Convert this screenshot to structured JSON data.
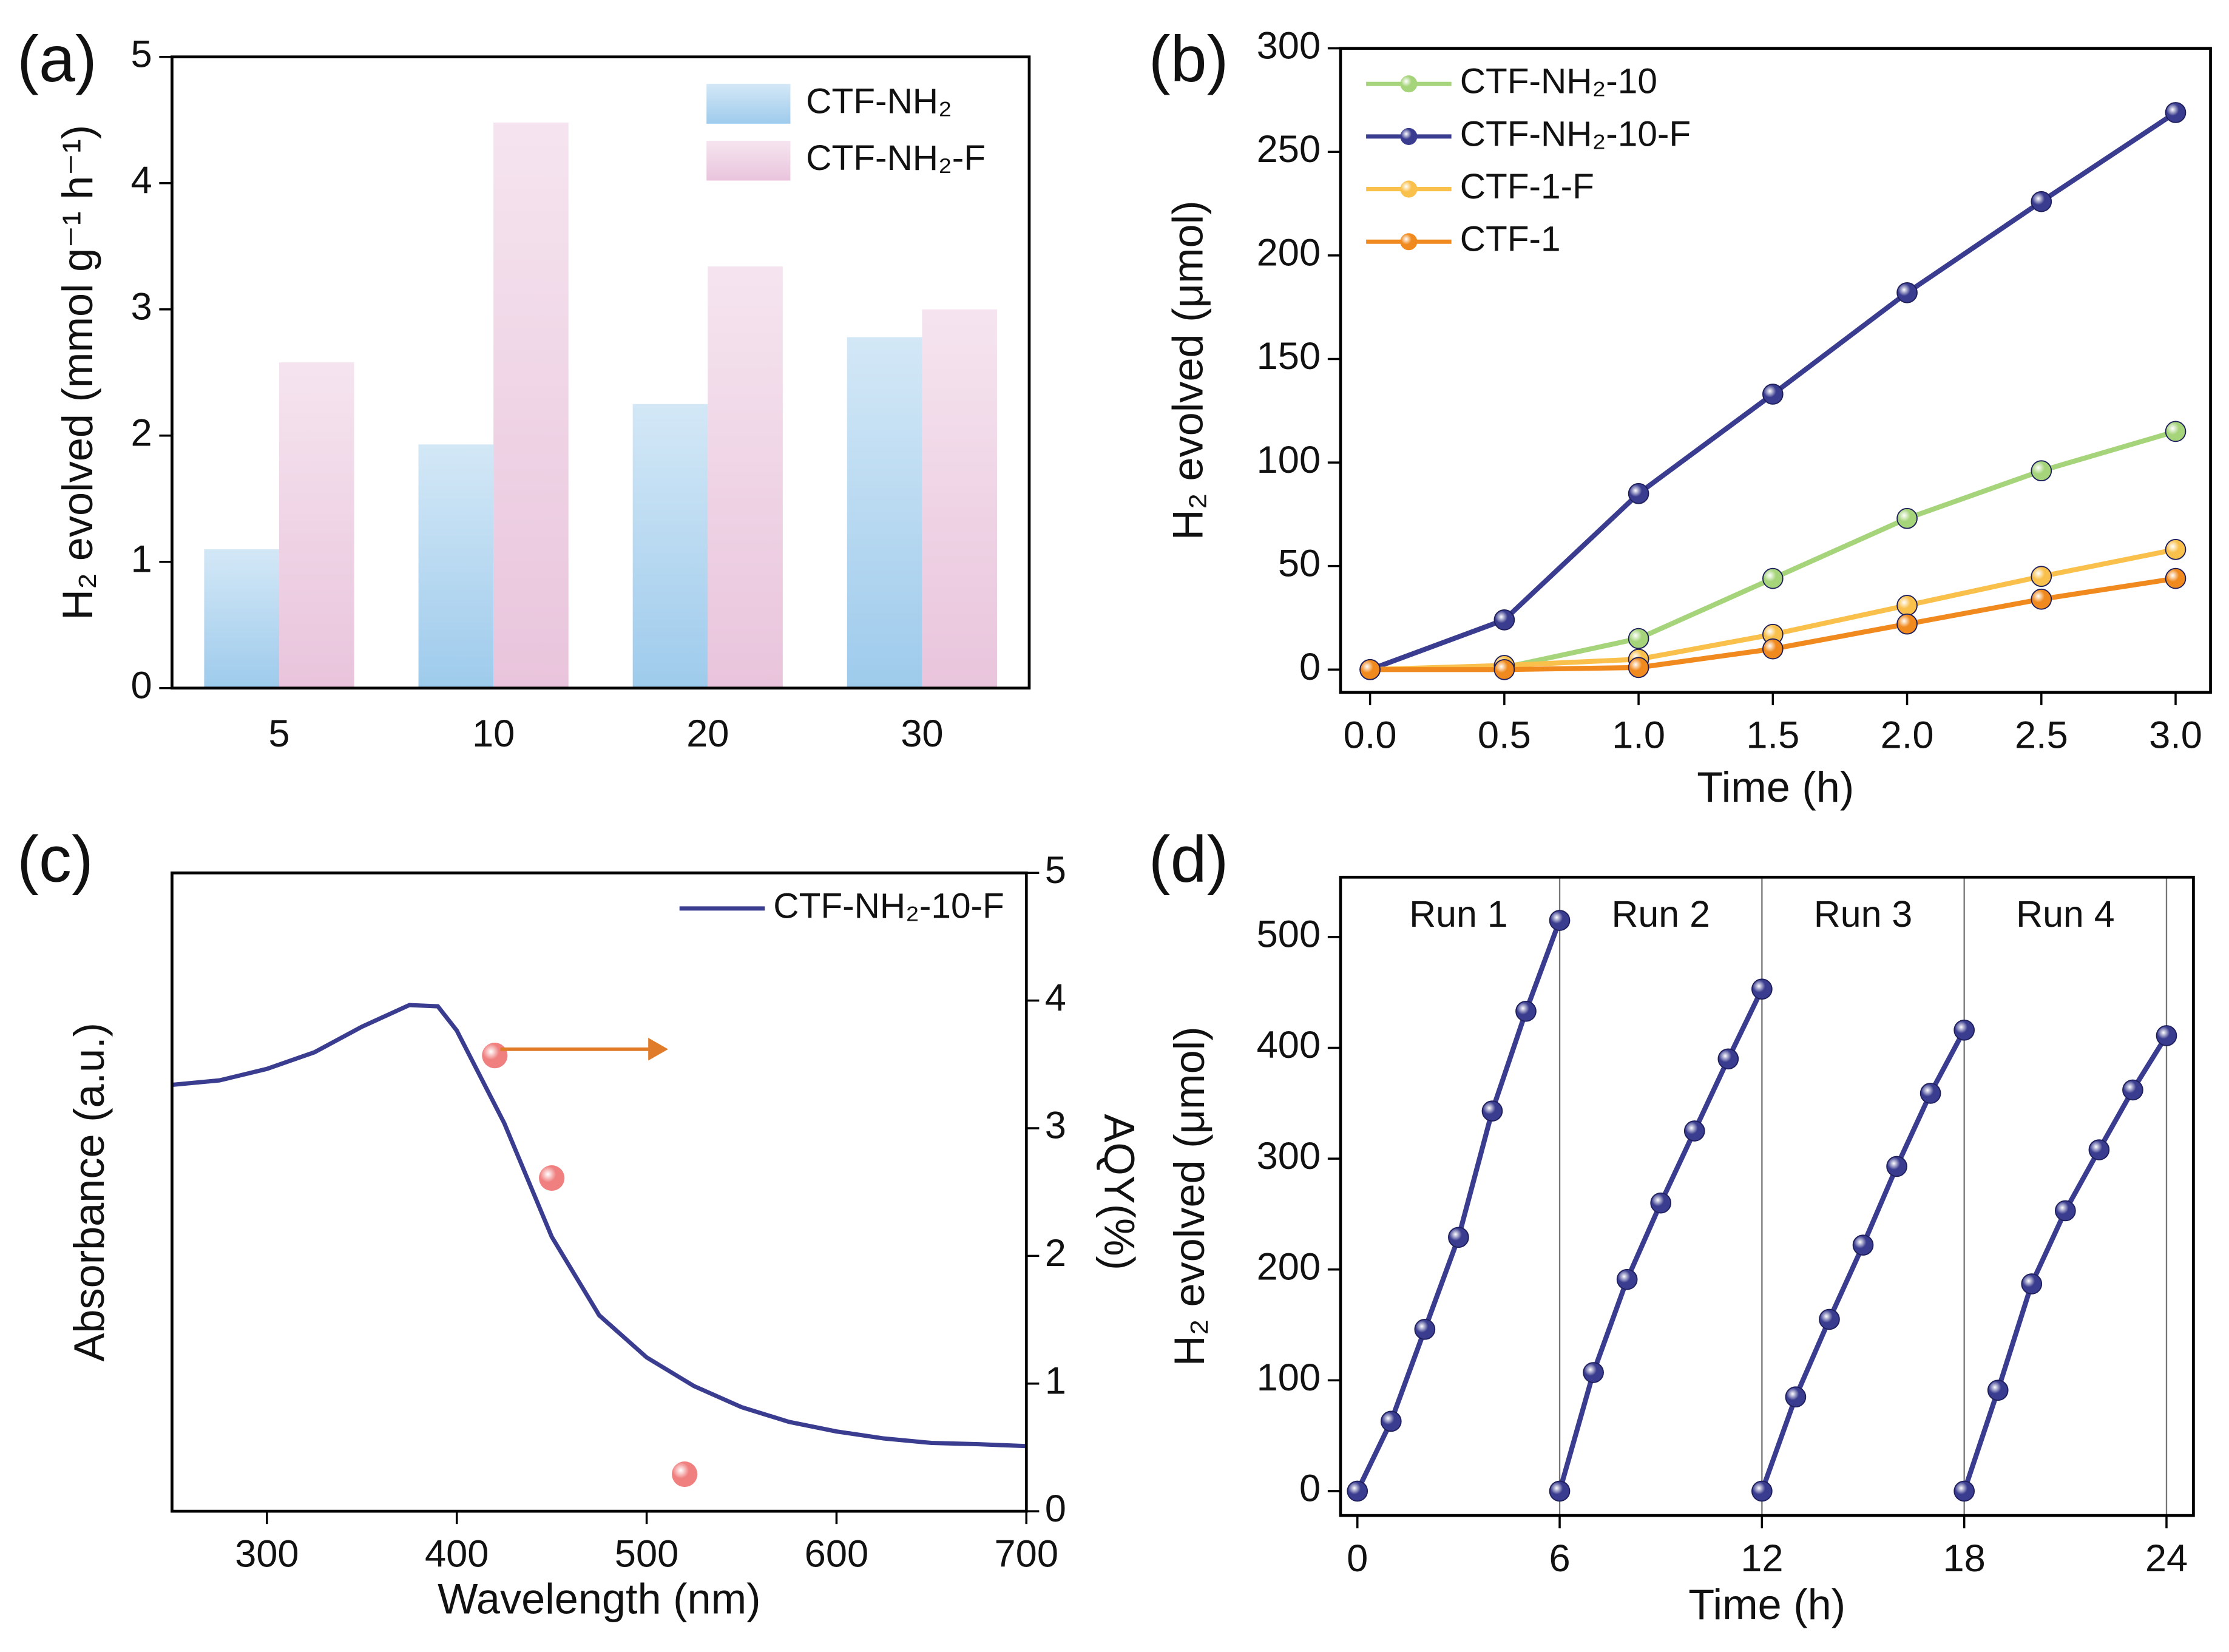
{
  "chart_data": [
    {
      "type": "bar",
      "panel_label": "(a)",
      "y_label": "H₂ evolved (mmol g⁻¹ h⁻¹)",
      "categories": [
        "5",
        "10",
        "20",
        "30"
      ],
      "series": [
        {
          "name": "CTF-NH₂",
          "color": "#9ecbec",
          "values": [
            1.1,
            1.93,
            2.25,
            2.78
          ]
        },
        {
          "name": "CTF-NH₂-F",
          "color": "#e9c4dc",
          "values": [
            2.58,
            4.48,
            3.34,
            3.0
          ]
        }
      ],
      "ylim": [
        0,
        5
      ],
      "yticks": [
        0,
        1,
        2,
        3,
        4,
        5
      ],
      "legend": "top-right"
    },
    {
      "type": "line",
      "panel_label": "(b)",
      "x_label": "Time (h)",
      "y_label": "H₂ evolved (μmol)",
      "x": [
        0,
        0.5,
        1,
        1.5,
        2,
        2.5,
        3
      ],
      "series": [
        {
          "name": "CTF-NH₂-10",
          "color": "#a5d47a",
          "mode": "lines+markers",
          "values": [
            0,
            1,
            15,
            44,
            73,
            96,
            115
          ]
        },
        {
          "name": "CTF-NH₂-10-F",
          "color": "#3a3c8f",
          "mode": "lines+markers",
          "values": [
            0,
            24,
            85,
            133,
            182,
            226,
            269
          ]
        },
        {
          "name": "CTF-1-F",
          "color": "#f9c04c",
          "mode": "lines+markers",
          "values": [
            0,
            2,
            5,
            17,
            31,
            45,
            58
          ]
        },
        {
          "name": "CTF-1",
          "color": "#f08a1e",
          "mode": "lines+markers",
          "values": [
            0,
            0,
            1,
            10,
            22,
            34,
            44
          ]
        }
      ],
      "xlim": [
        -0.11,
        3.13
      ],
      "xticks": [
        {
          "value": 0,
          "label": "0.0"
        },
        0.5,
        {
          "value": 1,
          "label": "1.0"
        },
        1.5,
        {
          "value": 2,
          "label": "2.0"
        },
        2.5,
        {
          "value": 3,
          "label": "3.0"
        }
      ],
      "ylim": [
        -11,
        300
      ],
      "yticks": [
        0,
        50,
        100,
        150,
        200,
        250,
        300
      ],
      "legend": "top-left"
    },
    {
      "type": "line",
      "panel_label": "(c)",
      "x_label": "Wavelength (nm)",
      "y_label": "Absorbance (a.u.)",
      "y2_label": "AQY(%)",
      "series": [
        {
          "name": "CTF-NH₂-10-F",
          "color": "#3a3c8f",
          "mode": "lines",
          "x": [
            250,
            275,
            300,
            325,
            350,
            375,
            390,
            400,
            425,
            450,
            475,
            500,
            525,
            550,
            575,
            600,
            625,
            650,
            675,
            700
          ],
          "values": [
            0.668,
            0.675,
            0.693,
            0.719,
            0.759,
            0.793,
            0.791,
            0.753,
            0.608,
            0.43,
            0.307,
            0.241,
            0.196,
            0.163,
            0.14,
            0.125,
            0.114,
            0.107,
            0.105,
            0.102
          ]
        },
        {
          "color": "#f08080",
          "mode": "markers",
          "axis": "y2",
          "x": [
            420,
            450,
            520
          ],
          "values": [
            3.57,
            2.61,
            0.29
          ]
        }
      ],
      "xlim": [
        250,
        700
      ],
      "xticks": [
        300,
        400,
        500,
        600,
        700
      ],
      "ylim": [
        0,
        1
      ],
      "y2lim": [
        0,
        5
      ],
      "y2ticks": [
        0,
        1,
        2,
        3,
        4,
        5
      ],
      "legend": "top-right"
    },
    {
      "type": "line",
      "panel_label": "(d)",
      "x_label": "Time (h)",
      "y_label": "H₂ evolved (μmol)",
      "series": [
        {
          "name": "Run 1",
          "color": "#3a3c8f",
          "mode": "lines+markers",
          "x": [
            0,
            1,
            2,
            3,
            4,
            5,
            6
          ],
          "values": [
            0,
            63,
            146,
            229,
            343,
            433,
            515
          ]
        },
        {
          "name": "Run 2",
          "color": "#3a3c8f",
          "mode": "lines+markers",
          "x": [
            6,
            7,
            8,
            9,
            10,
            11,
            12
          ],
          "values": [
            0,
            107,
            191,
            260,
            325,
            390,
            453
          ]
        },
        {
          "name": "Run 3",
          "color": "#3a3c8f",
          "mode": "lines+markers",
          "x": [
            12,
            13,
            14,
            15,
            16,
            17,
            18
          ],
          "values": [
            0,
            85,
            155,
            222,
            293,
            359,
            416
          ]
        },
        {
          "name": "Run 4",
          "color": "#3a3c8f",
          "mode": "lines+markers",
          "x": [
            18,
            19,
            20,
            21,
            22,
            23,
            24
          ],
          "values": [
            0,
            91,
            187,
            253,
            308,
            362,
            411
          ]
        }
      ],
      "dividers": [
        6,
        12,
        18,
        24
      ],
      "xlim": [
        -0.5,
        24.8
      ],
      "xticks": [
        0,
        6,
        12,
        18,
        24
      ],
      "ylim": [
        -22,
        554
      ],
      "yticks": [
        0,
        100,
        200,
        300,
        400,
        500
      ],
      "legend": "none"
    }
  ]
}
